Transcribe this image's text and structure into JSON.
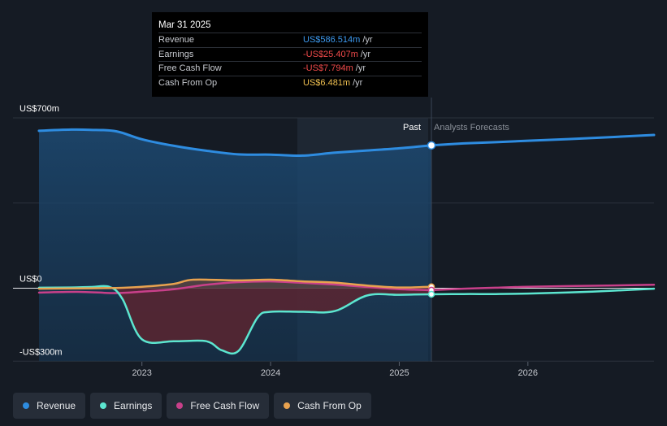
{
  "colors": {
    "revenue": "#2e8ce0",
    "earnings": "#5ce6d0",
    "free_cash_flow": "#c8408a",
    "cash_from_op": "#e8a24f",
    "grid": "#2c333d",
    "axis_text": "#c6c9cf",
    "background": "#151b24"
  },
  "tooltip": {
    "date": "Mar 31 2025",
    "rows": [
      {
        "label": "Revenue",
        "value": "US$586.514m",
        "unit": "/yr"
      },
      {
        "label": "Earnings",
        "value": "-US$25.407m",
        "unit": "/yr"
      },
      {
        "label": "Free Cash Flow",
        "value": "-US$7.794m",
        "unit": "/yr"
      },
      {
        "label": "Cash From Op",
        "value": "US$6.481m",
        "unit": "/yr"
      }
    ]
  },
  "legend": [
    {
      "label": "Revenue",
      "color": "#2e8ce0"
    },
    {
      "label": "Earnings",
      "color": "#5ce6d0"
    },
    {
      "label": "Free Cash Flow",
      "color": "#c8408a"
    },
    {
      "label": "Cash From Op",
      "color": "#e8a24f"
    }
  ],
  "chart_data": {
    "type": "line",
    "title": "",
    "xlabel": "",
    "ylabel": "",
    "x_ticks": [
      2023,
      2024,
      2025,
      2026
    ],
    "x_tick_labels": [
      "2023",
      "2024",
      "2025",
      "2026"
    ],
    "y_tick_labels": [
      {
        "value": 700,
        "label": "US$700m"
      },
      {
        "value": 0,
        "label": "US$0"
      },
      {
        "value": -300,
        "label": "-US$300m"
      }
    ],
    "ylim": [
      -300,
      700
    ],
    "xlim": [
      2022.2,
      2026.98
    ],
    "past_label": "Past",
    "forecast_label": "Analysts Forecasts",
    "divider_x": 2025.25,
    "highlight_range": [
      2024.25,
      2025.25
    ],
    "series": [
      {
        "name": "Revenue",
        "key": "revenue",
        "past": [
          [
            2022.2,
            647
          ],
          [
            2022.45,
            652
          ],
          [
            2022.6,
            651
          ],
          [
            2022.8,
            645
          ],
          [
            2023.0,
            612
          ],
          [
            2023.25,
            585
          ],
          [
            2023.5,
            565
          ],
          [
            2023.75,
            550
          ],
          [
            2024.0,
            549
          ],
          [
            2024.25,
            545
          ],
          [
            2024.5,
            557
          ],
          [
            2024.75,
            566
          ],
          [
            2025.0,
            575
          ],
          [
            2025.25,
            587
          ]
        ],
        "forecast": [
          [
            2025.25,
            587
          ],
          [
            2025.5,
            595
          ],
          [
            2025.75,
            600
          ],
          [
            2026.0,
            606
          ],
          [
            2026.5,
            617
          ],
          [
            2026.98,
            630
          ]
        ]
      },
      {
        "name": "Earnings",
        "key": "earnings",
        "past": [
          [
            2022.2,
            2
          ],
          [
            2022.45,
            3
          ],
          [
            2022.6,
            5
          ],
          [
            2022.75,
            5
          ],
          [
            2022.85,
            -45
          ],
          [
            2023.0,
            -210
          ],
          [
            2023.25,
            -218
          ],
          [
            2023.5,
            -218
          ],
          [
            2023.62,
            -255
          ],
          [
            2023.75,
            -258
          ],
          [
            2023.9,
            -120
          ],
          [
            2024.0,
            -97
          ],
          [
            2024.25,
            -97
          ],
          [
            2024.5,
            -94
          ],
          [
            2024.75,
            -30
          ],
          [
            2025.0,
            -27
          ],
          [
            2025.25,
            -25
          ]
        ],
        "forecast": [
          [
            2025.25,
            -25
          ],
          [
            2025.5,
            -24
          ],
          [
            2025.75,
            -24
          ],
          [
            2026.0,
            -22
          ],
          [
            2026.5,
            -14
          ],
          [
            2026.98,
            -2
          ]
        ]
      },
      {
        "name": "Free Cash Flow",
        "key": "free_cash_flow",
        "past": [
          [
            2022.2,
            -18
          ],
          [
            2022.5,
            -15
          ],
          [
            2022.8,
            -20
          ],
          [
            2023.0,
            -14
          ],
          [
            2023.25,
            -4
          ],
          [
            2023.5,
            14
          ],
          [
            2023.75,
            25
          ],
          [
            2024.0,
            28
          ],
          [
            2024.25,
            22
          ],
          [
            2024.5,
            15
          ],
          [
            2024.75,
            5
          ],
          [
            2025.0,
            -4
          ],
          [
            2025.25,
            -8
          ]
        ],
        "forecast": [
          [
            2025.25,
            -8
          ],
          [
            2025.5,
            -2
          ],
          [
            2025.75,
            2
          ],
          [
            2026.0,
            6
          ],
          [
            2026.5,
            10
          ],
          [
            2026.98,
            14
          ]
        ]
      },
      {
        "name": "Cash From Op",
        "key": "cash_from_op",
        "past": [
          [
            2022.2,
            -2
          ],
          [
            2022.5,
            -1
          ],
          [
            2022.8,
            1
          ],
          [
            2023.0,
            6
          ],
          [
            2023.25,
            18
          ],
          [
            2023.4,
            35
          ],
          [
            2023.75,
            32
          ],
          [
            2024.0,
            35
          ],
          [
            2024.25,
            28
          ],
          [
            2024.5,
            23
          ],
          [
            2024.75,
            11
          ],
          [
            2025.0,
            3
          ],
          [
            2025.25,
            6
          ]
        ],
        "forecast": []
      }
    ]
  }
}
